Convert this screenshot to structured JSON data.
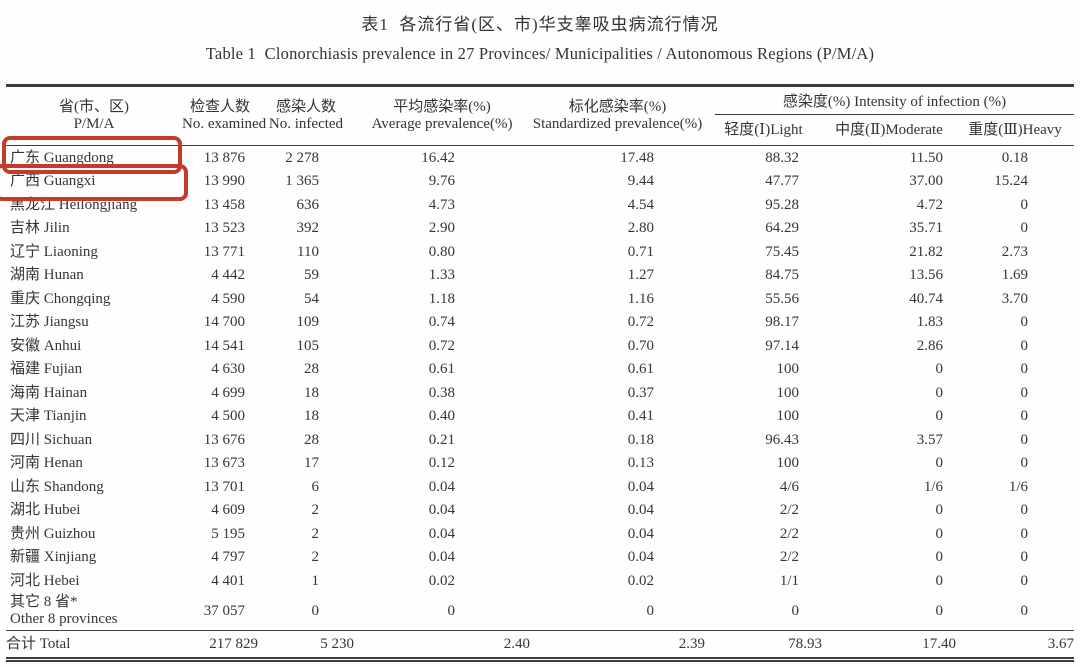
{
  "title": {
    "zh": "表1  各流行省(区、市)华支睾吸虫病流行情况",
    "en": "Table 1  Clonorchiasis prevalence in 27 Provinces/ Municipalities / Autonomous Regions (P/M/A)"
  },
  "table": {
    "columns": {
      "province": {
        "zh": "省(市、区)",
        "en": "P/M/A"
      },
      "examined": {
        "zh": "检查人数",
        "en": "No. examined"
      },
      "infected": {
        "zh": "感染人数",
        "en": "No. infected"
      },
      "avg_prevalence": {
        "zh": "平均感染率(%)",
        "en": "Average prevalence(%)"
      },
      "std_prevalence": {
        "zh": "标化感染率(%)",
        "en": "Standardized prevalence(%)"
      },
      "intensity_group": "感染度(%) Intensity of infection (%)",
      "light": "轻度(Ⅰ)Light",
      "moderate": "中度(Ⅱ)Moderate",
      "heavy": "重度(Ⅲ)Heavy"
    },
    "rows": [
      {
        "name": "广东 Guangdong",
        "examined": "13 876",
        "infected": "2 278",
        "avg": "16.42",
        "std": "17.48",
        "light": "88.32",
        "moderate": "11.50",
        "heavy": "0.18",
        "highlighted": true
      },
      {
        "name": "广西 Guangxi",
        "examined": "13 990",
        "infected": "1 365",
        "avg": "9.76",
        "std": "9.44",
        "light": "47.77",
        "moderate": "37.00",
        "heavy": "15.24",
        "highlighted": true
      },
      {
        "name": "黑龙江 Heilongjiang",
        "examined": "13 458",
        "infected": "636",
        "avg": "4.73",
        "std": "4.54",
        "light": "95.28",
        "moderate": "4.72",
        "heavy": "0",
        "highlighted": false
      },
      {
        "name": "吉林 Jilin",
        "examined": "13 523",
        "infected": "392",
        "avg": "2.90",
        "std": "2.80",
        "light": "64.29",
        "moderate": "35.71",
        "heavy": "0",
        "highlighted": false
      },
      {
        "name": "辽宁 Liaoning",
        "examined": "13 771",
        "infected": "110",
        "avg": "0.80",
        "std": "0.71",
        "light": "75.45",
        "moderate": "21.82",
        "heavy": "2.73",
        "highlighted": false
      },
      {
        "name": "湖南 Hunan",
        "examined": "4 442",
        "infected": "59",
        "avg": "1.33",
        "std": "1.27",
        "light": "84.75",
        "moderate": "13.56",
        "heavy": "1.69",
        "highlighted": false
      },
      {
        "name": "重庆 Chongqing",
        "examined": "4 590",
        "infected": "54",
        "avg": "1.18",
        "std": "1.16",
        "light": "55.56",
        "moderate": "40.74",
        "heavy": "3.70",
        "highlighted": false
      },
      {
        "name": "江苏 Jiangsu",
        "examined": "14 700",
        "infected": "109",
        "avg": "0.74",
        "std": "0.72",
        "light": "98.17",
        "moderate": "1.83",
        "heavy": "0",
        "highlighted": false
      },
      {
        "name": "安徽 Anhui",
        "examined": "14 541",
        "infected": "105",
        "avg": "0.72",
        "std": "0.70",
        "light": "97.14",
        "moderate": "2.86",
        "heavy": "0",
        "highlighted": false
      },
      {
        "name": "福建 Fujian",
        "examined": "4 630",
        "infected": "28",
        "avg": "0.61",
        "std": "0.61",
        "light": "100",
        "moderate": "0",
        "heavy": "0",
        "highlighted": false
      },
      {
        "name": "海南 Hainan",
        "examined": "4 699",
        "infected": "18",
        "avg": "0.38",
        "std": "0.37",
        "light": "100",
        "moderate": "0",
        "heavy": "0",
        "highlighted": false
      },
      {
        "name": "天津 Tianjin",
        "examined": "4 500",
        "infected": "18",
        "avg": "0.40",
        "std": "0.41",
        "light": "100",
        "moderate": "0",
        "heavy": "0",
        "highlighted": false
      },
      {
        "name": "四川 Sichuan",
        "examined": "13 676",
        "infected": "28",
        "avg": "0.21",
        "std": "0.18",
        "light": "96.43",
        "moderate": "3.57",
        "heavy": "0",
        "highlighted": false
      },
      {
        "name": "河南 Henan",
        "examined": "13 673",
        "infected": "17",
        "avg": "0.12",
        "std": "0.13",
        "light": "100",
        "moderate": "0",
        "heavy": "0",
        "highlighted": false
      },
      {
        "name": "山东 Shandong",
        "examined": "13 701",
        "infected": "6",
        "avg": "0.04",
        "std": "0.04",
        "light": "4/6",
        "moderate": "1/6",
        "heavy": "1/6",
        "highlighted": false
      },
      {
        "name": "湖北 Hubei",
        "examined": "4 609",
        "infected": "2",
        "avg": "0.04",
        "std": "0.04",
        "light": "2/2",
        "moderate": "0",
        "heavy": "0",
        "highlighted": false
      },
      {
        "name": "贵州 Guizhou",
        "examined": "5 195",
        "infected": "2",
        "avg": "0.04",
        "std": "0.04",
        "light": "2/2",
        "moderate": "0",
        "heavy": "0",
        "highlighted": false
      },
      {
        "name": "新疆 Xinjiang",
        "examined": "4 797",
        "infected": "2",
        "avg": "0.04",
        "std": "0.04",
        "light": "2/2",
        "moderate": "0",
        "heavy": "0",
        "highlighted": false
      },
      {
        "name": "河北 Hebei",
        "examined": "4 401",
        "infected": "1",
        "avg": "0.02",
        "std": "0.02",
        "light": "1/1",
        "moderate": "0",
        "heavy": "0",
        "highlighted": false
      },
      {
        "name": "其它 8 省*\nOther 8 provinces",
        "examined": "37 057",
        "infected": "0",
        "avg": "0",
        "std": "0",
        "light": "0",
        "moderate": "0",
        "heavy": "0",
        "highlighted": false,
        "two_line": true
      }
    ],
    "total": {
      "name": "合计 Total",
      "examined": "217 829",
      "infected": "5 230",
      "avg": "2.40",
      "std": "2.39",
      "light": "78.93",
      "moderate": "17.40",
      "heavy": "3.67"
    }
  },
  "annotations": {
    "highlight_color": "#c23b2b",
    "highlighted_provinces": [
      "广东 Guangdong",
      "广西 Guangxi"
    ]
  }
}
